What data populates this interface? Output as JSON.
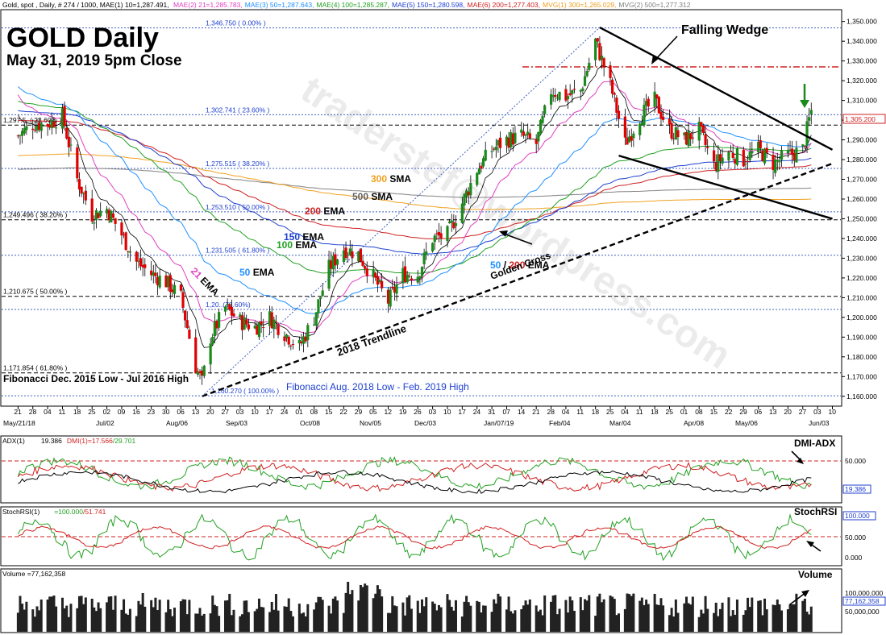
{
  "header": {
    "symbol_line": "Gold, spot , Daily, # 274 / 1000, MAE(1) 10=1,287.491,",
    "indicators": [
      {
        "text": "MAE(2) 21=1,285.783,",
        "color": "#e040c0"
      },
      {
        "text": "MAE(3) 50=1,287.643,",
        "color": "#1e90ff"
      },
      {
        "text": "MAE(4) 100=1,285.287,",
        "color": "#22a022"
      },
      {
        "text": "MAE(5) 150=1,280.598,",
        "color": "#1c3fd0"
      },
      {
        "text": "MAE(6) 200=1,277.403,",
        "color": "#d02020"
      },
      {
        "text": "MVG(1) 300=1,265.029,",
        "color": "#f0a020"
      },
      {
        "text": "MVG(2) 500=1,277.312",
        "color": "#808080"
      }
    ]
  },
  "title": "GOLD Daily",
  "subtitle": "May 31, 2019 5pm Close",
  "watermark": "traderstef@wordpress.com",
  "colors": {
    "up": "#1a8a1a",
    "down": "#e00000",
    "ema21": "#e040c0",
    "ema50": "#1e90ff",
    "ema100": "#22a022",
    "ema150": "#1c3fd0",
    "ema200": "#d02020",
    "sma300": "#f0a020",
    "sma500": "#808080",
    "ema10": "#000000"
  },
  "annotations": {
    "falling_wedge": "Falling Wedge",
    "trendline": "2018 Trendline",
    "golden_cross_num1": "50",
    "golden_cross_slash": " / ",
    "golden_cross_num2": "200",
    "golden_cross_ema": " EMA",
    "golden_cross_line2": "Golden Cross",
    "fib1_label": "Fibonacci Dec. 2015 Low - Jul 2016 High",
    "fib2_label": "Fibonacci Aug. 2018 Low - Feb. 2019 High",
    "ma_labels": [
      {
        "num": "300",
        "txt": " SMA",
        "color": "#f0a020"
      },
      {
        "num": "500",
        "txt": " SMA",
        "color": "#606060"
      },
      {
        "num": "200",
        "txt": " EMA",
        "color": "#d02020"
      },
      {
        "num": "150",
        "txt": " EMA",
        "color": "#1c3fd0"
      },
      {
        "num": "100",
        "txt": " EMA",
        "color": "#22a022"
      },
      {
        "num": "50",
        "txt": " EMA",
        "color": "#1e90ff"
      },
      {
        "num": "21",
        "txt": " EMA",
        "color": "#e040c0"
      }
    ]
  },
  "fib_levels": [
    {
      "label": "1,346.750 ( 0.00% )",
      "price": 1346.75
    },
    {
      "label": "1,302.741 ( 23.60% )",
      "price": 1302.741
    },
    {
      "label": "1,297.5..( 23.60% )",
      "price": 1297.5
    },
    {
      "label": "1,275.515 ( 38.20% )",
      "price": 1275.515
    },
    {
      "label": "1,253.510 ( 50.00% )",
      "price": 1253.51
    },
    {
      "label": "1,249.496 ( 38.20% )",
      "price": 1249.496
    },
    {
      "label": "1,231.505 ( 61.80% )",
      "price": 1231.505
    },
    {
      "label": "1,210.675 ( 50.00% )",
      "price": 1210.675
    },
    {
      "label": "1,20..(78.60%)",
      "price": 1204
    },
    {
      "label": "1,171.854 ( 61.80% )",
      "price": 1171.854
    },
    {
      "label": "1,160.270 ( 100.00% )",
      "price": 1160.27
    }
  ],
  "price_axis": {
    "ticks": [
      "1,350.000",
      "1,340.000",
      "1,330.000",
      "1,320.000",
      "1,310.000",
      "1,300.000",
      "1,290.000",
      "1,280.000",
      "1,270.000",
      "1,260.000",
      "1,250.000",
      "1,240.000",
      "1,230.000",
      "1,220.000",
      "1,210.000",
      "1,200.000",
      "1,190.000",
      "1,180.000",
      "1,170.000",
      "1,160.000"
    ],
    "last_price": "1,305.200"
  },
  "date_axis": {
    "days": [
      "21",
      "28",
      "04",
      "11",
      "18",
      "25",
      "02",
      "09",
      "16",
      "23",
      "30",
      "06",
      "13",
      "20",
      "27",
      "03",
      "10",
      "17",
      "24",
      "01",
      "08",
      "15",
      "22",
      "29",
      "05",
      "12",
      "19",
      "26",
      "03",
      "10",
      "17",
      "24",
      "31",
      "07",
      "14",
      "21",
      "28",
      "04",
      "11",
      "18",
      "25",
      "04",
      "11",
      "18",
      "25",
      "01",
      "08",
      "15",
      "22",
      "29",
      "06",
      "13",
      "20",
      "27",
      "03",
      "10"
    ],
    "months": [
      "May/21/18",
      "Jul/02",
      "Aug/06",
      "Sep/03",
      "Oct/08",
      "Nov/05",
      "Dec/03",
      "Jan/07/19",
      "Feb/04",
      "Mar/04",
      "Apr/08",
      "May/06",
      "Jun/03"
    ]
  },
  "panels": {
    "adx": {
      "label": "ADX(1)",
      "adx_val": "19.386",
      "dmi": "DMI(1)",
      "dmi_vals": "=17.566",
      "dmi_vals2": "/29.701",
      "title": "DMI-ADX",
      "ticks": [
        "50.000",
        "19.386"
      ]
    },
    "stoch": {
      "label": "StochRSI(1)",
      "vals": "=100.000",
      "vals2": "/51.741",
      "title": "StochRSI",
      "ticks": [
        "100.000",
        "50.000",
        "0.000"
      ]
    },
    "volume": {
      "label": "Volume =77,162,358",
      "title": "Volume",
      "ticks": [
        "100,000,000",
        "77,162,358",
        "50,000,000"
      ]
    }
  },
  "chart_data": {
    "type": "candlestick",
    "title": "GOLD Daily",
    "subtitle": "May 31, 2019 5pm Close",
    "ylim": [
      1155,
      1356
    ],
    "close_path": [
      [
        "2018-05-21",
        1292
      ],
      [
        "2018-05-28",
        1298
      ],
      [
        "2018-06-04",
        1298
      ],
      [
        "2018-06-11",
        1302
      ],
      [
        "2018-06-18",
        1270
      ],
      [
        "2018-06-25",
        1252
      ],
      [
        "2018-07-02",
        1255
      ],
      [
        "2018-07-09",
        1242
      ],
      [
        "2018-07-16",
        1228
      ],
      [
        "2018-07-23",
        1222
      ],
      [
        "2018-07-30",
        1218
      ],
      [
        "2018-08-06",
        1210
      ],
      [
        "2018-08-13",
        1175
      ],
      [
        "2018-08-16",
        1167
      ],
      [
        "2018-08-20",
        1190
      ],
      [
        "2018-08-27",
        1205
      ],
      [
        "2018-09-03",
        1198
      ],
      [
        "2018-09-10",
        1195
      ],
      [
        "2018-09-17",
        1200
      ],
      [
        "2018-09-24",
        1192
      ],
      [
        "2018-10-01",
        1185
      ],
      [
        "2018-10-08",
        1200
      ],
      [
        "2018-10-15",
        1225
      ],
      [
        "2018-10-22",
        1235
      ],
      [
        "2018-10-29",
        1232
      ],
      [
        "2018-11-05",
        1220
      ],
      [
        "2018-11-12",
        1208
      ],
      [
        "2018-11-19",
        1222
      ],
      [
        "2018-11-26",
        1222
      ],
      [
        "2018-12-03",
        1240
      ],
      [
        "2018-12-10",
        1242
      ],
      [
        "2018-12-17",
        1258
      ],
      [
        "2018-12-24",
        1275
      ],
      [
        "2018-12-31",
        1285
      ],
      [
        "2019-01-07",
        1290
      ],
      [
        "2019-01-14",
        1292
      ],
      [
        "2019-01-21",
        1288
      ],
      [
        "2019-01-28",
        1315
      ],
      [
        "2019-02-04",
        1312
      ],
      [
        "2019-02-11",
        1315
      ],
      [
        "2019-02-18",
        1340
      ],
      [
        "2019-02-25",
        1318
      ],
      [
        "2019-03-04",
        1288
      ],
      [
        "2019-03-11",
        1302
      ],
      [
        "2019-03-18",
        1310
      ],
      [
        "2019-03-25",
        1295
      ],
      [
        "2019-04-01",
        1290
      ],
      [
        "2019-04-08",
        1295
      ],
      [
        "2019-04-15",
        1277
      ],
      [
        "2019-04-22",
        1284
      ],
      [
        "2019-04-29",
        1280
      ],
      [
        "2019-05-06",
        1285
      ],
      [
        "2019-05-13",
        1278
      ],
      [
        "2019-05-20",
        1282
      ],
      [
        "2019-05-27",
        1285
      ],
      [
        "2019-05-31",
        1305.2
      ]
    ],
    "moving_averages": [
      {
        "name": "21 EMA",
        "last": 1285.783
      },
      {
        "name": "50 EMA",
        "last": 1287.643
      },
      {
        "name": "100 EMA",
        "last": 1285.287
      },
      {
        "name": "150 EMA",
        "last": 1280.598
      },
      {
        "name": "200 EMA",
        "last": 1277.403
      },
      {
        "name": "300 SMA",
        "last": 1265.029
      },
      {
        "name": "500 SMA",
        "last": 1277.312
      }
    ],
    "falling_wedge": {
      "upper": [
        [
          "2019-02-20",
          1347
        ],
        [
          "2019-06-10",
          1285
        ]
      ],
      "lower": [
        [
          "2019-03-01",
          1282
        ],
        [
          "2019-06-10",
          1250
        ]
      ]
    },
    "trendline_2018": [
      [
        "2018-08-16",
        1160
      ],
      [
        "2019-06-10",
        1278
      ]
    ],
    "resistance": 1327,
    "last_close": 1305.2
  }
}
